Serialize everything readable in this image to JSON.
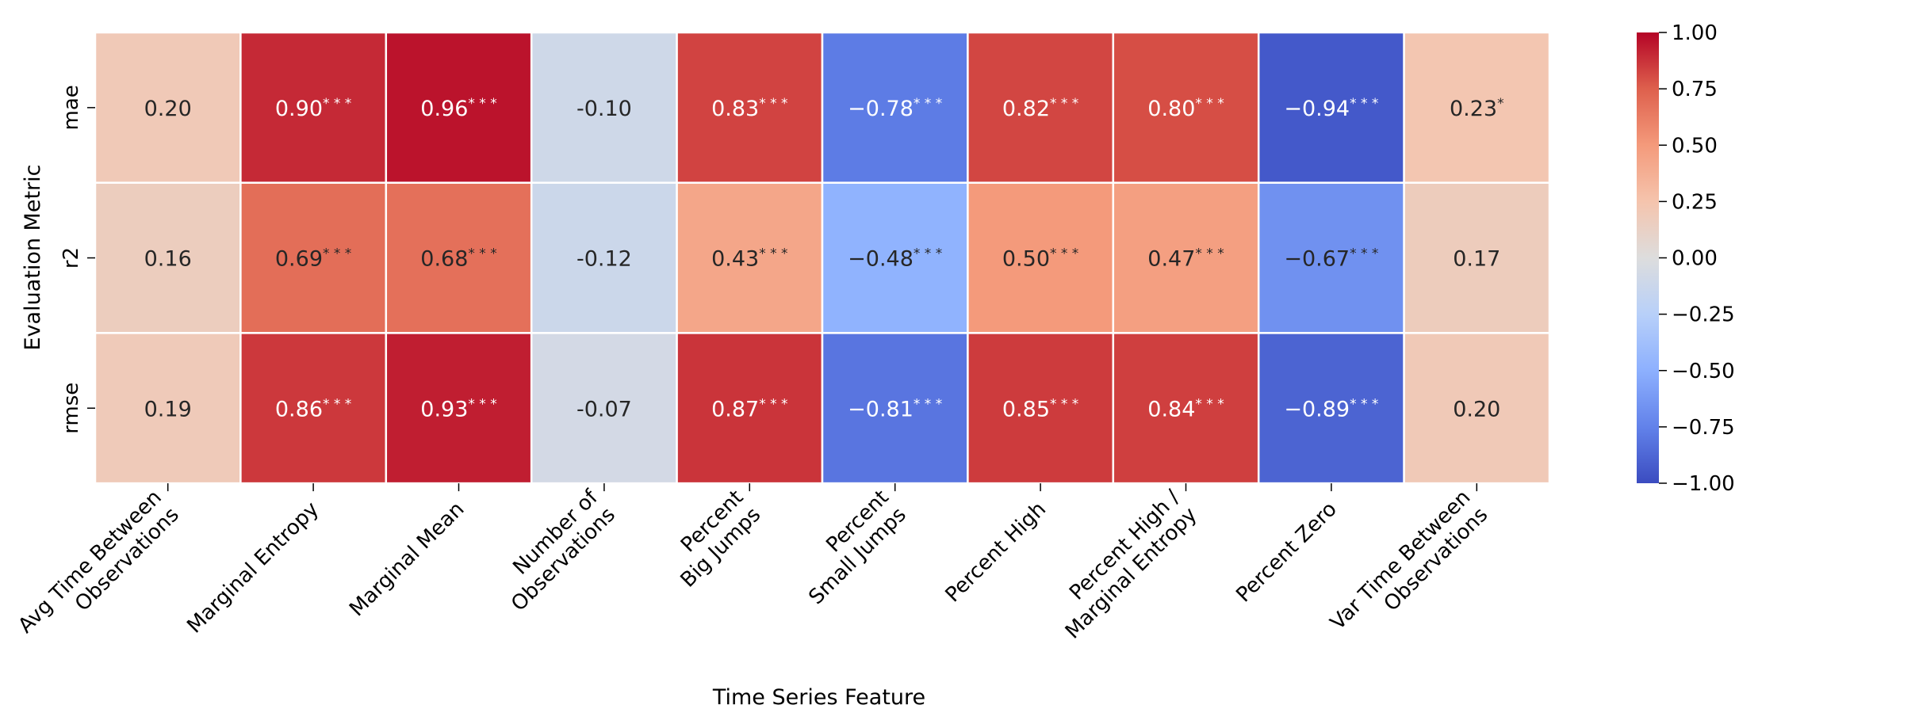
{
  "chart_data": {
    "type": "heatmap",
    "title": "",
    "xlabel": "Time Series Feature",
    "ylabel": "Evaluation Metric",
    "x_categories": [
      [
        "Avg Time Between",
        "Observations"
      ],
      [
        "Marginal Entropy"
      ],
      [
        "Marginal Mean"
      ],
      [
        "Number of",
        "Observations"
      ],
      [
        "Percent",
        "Big Jumps"
      ],
      [
        "Percent",
        "Small Jumps"
      ],
      [
        "Percent High"
      ],
      [
        "Percent High /",
        "Marginal Entropy"
      ],
      [
        "Percent Zero"
      ],
      [
        "Var Time Between",
        "Observations"
      ]
    ],
    "y_categories": [
      "mae",
      "r2",
      "rmse"
    ],
    "values": [
      [
        0.2,
        0.9,
        0.96,
        -0.1,
        0.83,
        -0.78,
        0.82,
        0.8,
        -0.94,
        0.23
      ],
      [
        0.16,
        0.69,
        0.68,
        -0.12,
        0.43,
        -0.48,
        0.5,
        0.47,
        -0.67,
        0.17
      ],
      [
        0.19,
        0.86,
        0.93,
        -0.07,
        0.87,
        -0.81,
        0.85,
        0.84,
        -0.89,
        0.2
      ]
    ],
    "labels": [
      [
        "0.20",
        "0.90***",
        "0.96***",
        "-0.10",
        "0.83***",
        "−0.78***",
        "0.82***",
        "0.80***",
        "−0.94***",
        "0.23*"
      ],
      [
        "0.16",
        "0.69***",
        "0.68***",
        "-0.12",
        "0.43***",
        "−0.48***",
        "0.50***",
        "0.47***",
        "−0.67***",
        "0.17"
      ],
      [
        "0.19",
        "0.86***",
        "0.93***",
        "-0.07",
        "0.87***",
        "−0.81***",
        "0.85***",
        "0.84***",
        "−0.89***",
        "0.20"
      ]
    ],
    "colormap": "coolwarm",
    "vmin": -1.0,
    "vmax": 1.0,
    "colorbar_ticks": [
      "1.00",
      "0.75",
      "0.50",
      "0.25",
      "0.00",
      "−0.25",
      "−0.50",
      "−0.75",
      "−1.00"
    ],
    "colorbar_tick_values": [
      1.0,
      0.75,
      0.5,
      0.25,
      0.0,
      -0.25,
      -0.5,
      -0.75,
      -1.0
    ],
    "colors": {
      "low": "#3b4cc0",
      "mid": "#dddddd",
      "high": "#b40426",
      "cell_border": "#ffffff"
    }
  }
}
